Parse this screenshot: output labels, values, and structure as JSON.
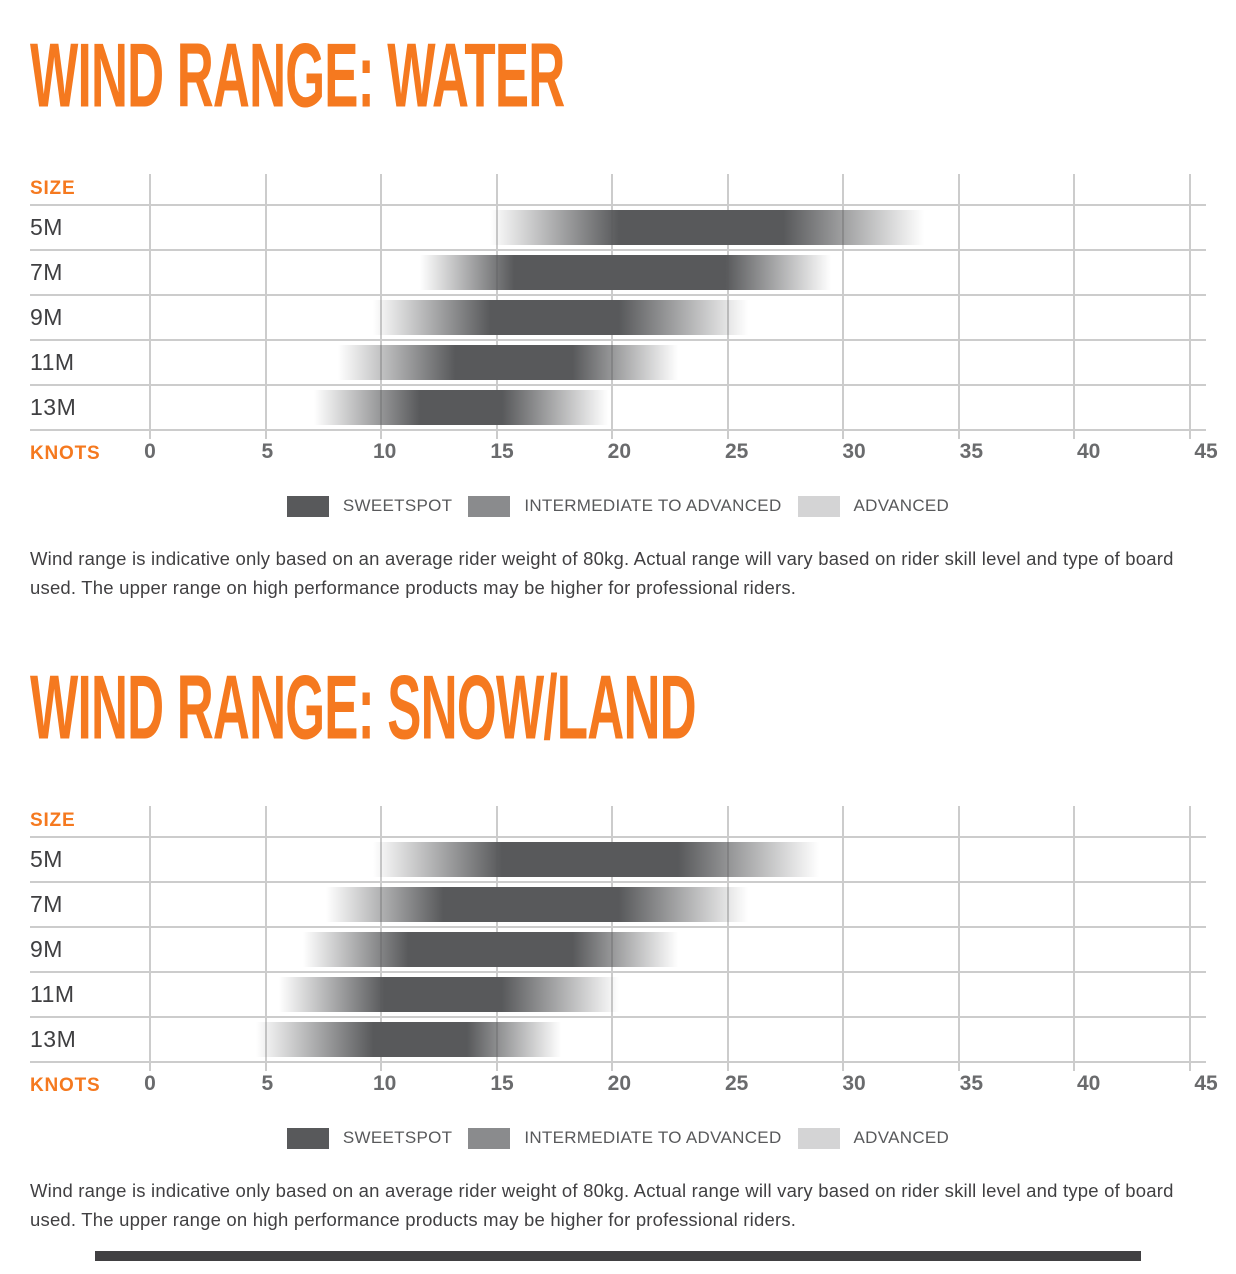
{
  "accent_color": "#F5791F",
  "grid_color": "#cccccc",
  "bar_color": "#58595b",
  "charts": [
    {
      "title": "WIND RANGE: WATER",
      "size_label": "SIZE",
      "knots_label": "KNOTS",
      "chart_data": {
        "type": "bar",
        "variant": "horizontal-gradient-range",
        "xlabel": "KNOTS",
        "ylabel": "SIZE",
        "xlim": [
          0,
          45
        ],
        "x_ticks": [
          0,
          5,
          10,
          15,
          20,
          25,
          30,
          35,
          40,
          45
        ],
        "categories": [
          "5M",
          "7M",
          "9M",
          "11M",
          "13M"
        ],
        "series": [
          {
            "size": "5M",
            "fade_in_start": 14.5,
            "sweetspot_start": 20,
            "sweetspot_end": 27,
            "fade_out_end": 33
          },
          {
            "size": "7M",
            "fade_in_start": 11.5,
            "sweetspot_start": 15.5,
            "sweetspot_end": 24.5,
            "fade_out_end": 29
          },
          {
            "size": "9M",
            "fade_in_start": 9.5,
            "sweetspot_start": 14.5,
            "sweetspot_end": 20,
            "fade_out_end": 25.5
          },
          {
            "size": "11M",
            "fade_in_start": 8,
            "sweetspot_start": 13,
            "sweetspot_end": 18,
            "fade_out_end": 22.5
          },
          {
            "size": "13M",
            "fade_in_start": 7,
            "sweetspot_start": 11.5,
            "sweetspot_end": 15,
            "fade_out_end": 19.5
          }
        ],
        "units": "knots",
        "grid": true,
        "legend_position": "bottom-center"
      },
      "legend": [
        {
          "label": "SWEETSPOT",
          "color": "#58595b"
        },
        {
          "label": "INTERMEDIATE TO ADVANCED",
          "color": "#8a8b8d"
        },
        {
          "label": "ADVANCED",
          "color": "#d4d4d5"
        }
      ],
      "disclaimer": "Wind range is indicative only based on an average rider weight of 80kg. Actual range will vary based on rider skill level and type of board used. The upper range on high performance products may be higher for professional riders."
    },
    {
      "title": "WIND RANGE: SNOW/LAND",
      "size_label": "SIZE",
      "knots_label": "KNOTS",
      "chart_data": {
        "type": "bar",
        "variant": "horizontal-gradient-range",
        "xlabel": "KNOTS",
        "ylabel": "SIZE",
        "xlim": [
          0,
          45
        ],
        "x_ticks": [
          0,
          5,
          10,
          15,
          20,
          25,
          30,
          35,
          40,
          45
        ],
        "categories": [
          "5M",
          "7M",
          "9M",
          "11M",
          "13M"
        ],
        "series": [
          {
            "size": "5M",
            "fade_in_start": 9.5,
            "sweetspot_start": 15,
            "sweetspot_end": 22.5,
            "fade_out_end": 28.5
          },
          {
            "size": "7M",
            "fade_in_start": 7.5,
            "sweetspot_start": 12.5,
            "sweetspot_end": 20,
            "fade_out_end": 25.5
          },
          {
            "size": "9M",
            "fade_in_start": 6.5,
            "sweetspot_start": 11,
            "sweetspot_end": 18,
            "fade_out_end": 22.5
          },
          {
            "size": "11M",
            "fade_in_start": 5.5,
            "sweetspot_start": 10,
            "sweetspot_end": 15,
            "fade_out_end": 20
          },
          {
            "size": "13M",
            "fade_in_start": 4.5,
            "sweetspot_start": 9.5,
            "sweetspot_end": 13.5,
            "fade_out_end": 17.5
          }
        ],
        "units": "knots",
        "grid": true,
        "legend_position": "bottom-center"
      },
      "legend": [
        {
          "label": "SWEETSPOT",
          "color": "#58595b"
        },
        {
          "label": "INTERMEDIATE TO ADVANCED",
          "color": "#8a8b8d"
        },
        {
          "label": "ADVANCED",
          "color": "#d4d4d5"
        }
      ],
      "disclaimer": "Wind range is indicative only based on an average rider weight of 80kg. Actual range will vary based on rider skill level and type of board used. The upper range on high performance products may be higher for professional riders."
    }
  ]
}
